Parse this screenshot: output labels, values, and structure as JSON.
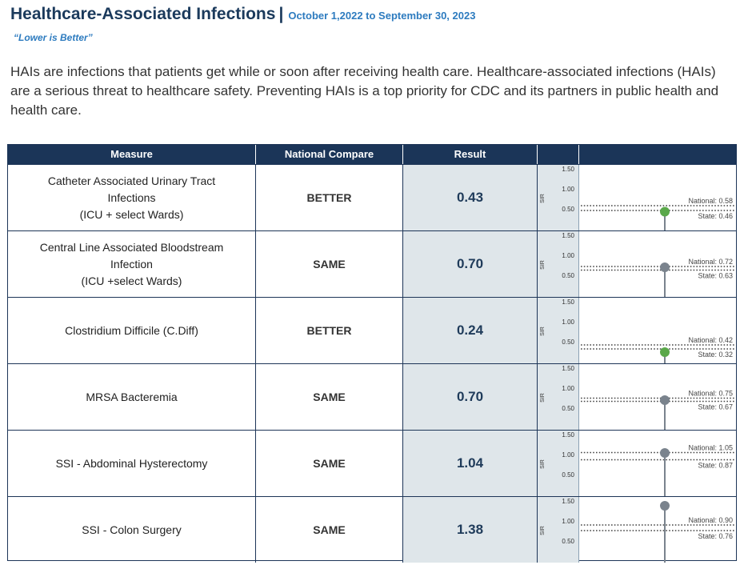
{
  "header": {
    "title": "Healthcare-Associated Infections",
    "separator": "|",
    "period": "October 1,2022 to September 30, 2023",
    "subtitle": "“Lower is Better”"
  },
  "intro": "HAIs are infections that patients get while or soon after receiving health care.  Healthcare-associated infections (HAIs) are a serious threat to healthcare safety.  Preventing HAIs is a top priority for CDC and its partners in public health and health care.",
  "table": {
    "columns": [
      "Measure",
      "National Compare",
      "Result",
      "",
      ""
    ],
    "axis_label": "SIR",
    "ticks": [
      "1.50",
      "1.00",
      "0.50"
    ],
    "rows": [
      {
        "measure": [
          "Catheter Associated Urinary Tract",
          "Infections",
          "(ICU + select Wards)"
        ],
        "compare": "BETTER",
        "result": "0.43",
        "national_label": "National: 0.58",
        "state_label": "State: 0.46"
      },
      {
        "measure": [
          "Central Line Associated Bloodstream",
          "Infection",
          "(ICU +select Wards)"
        ],
        "compare": "SAME",
        "result": "0.70",
        "national_label": "National: 0.72",
        "state_label": "State: 0.63"
      },
      {
        "measure": [
          "Clostridium Difficile (C.Diff)"
        ],
        "compare": "BETTER",
        "result": "0.24",
        "national_label": "National: 0.42",
        "state_label": "State: 0.32"
      },
      {
        "measure": [
          "MRSA Bacteremia"
        ],
        "compare": "SAME",
        "result": "0.70",
        "national_label": "National: 0.75",
        "state_label": "State: 0.67"
      },
      {
        "measure": [
          "SSI - Abdominal Hysterectomy"
        ],
        "compare": "SAME",
        "result": "1.04",
        "national_label": "National: 1.05",
        "state_label": "State: 0.87"
      },
      {
        "measure": [
          "SSI - Colon Surgery"
        ],
        "compare": "SAME",
        "result": "1.38",
        "national_label": "National: 0.90",
        "state_label": "State: 0.76"
      }
    ]
  },
  "chart_data": {
    "type": "scatter",
    "ylabel": "SIR",
    "ylim": [
      0,
      1.5
    ],
    "yticks": [
      1.5,
      1.0,
      0.5
    ],
    "grid": false,
    "series": [
      {
        "categories": [
          "Catheter Associated Urinary Tract Infections (ICU + select Wards)",
          "Central Line Associated Bloodstream Infection (ICU +select Wards)",
          "Clostridium Difficile (C.Diff)",
          "MRSA Bacteremia",
          "SSI - Abdominal Hysterectomy",
          "SSI - Colon Surgery"
        ],
        "values": [
          0.43,
          0.7,
          0.24,
          0.7,
          1.04,
          1.38
        ],
        "national": [
          0.58,
          0.72,
          0.42,
          0.75,
          1.05,
          0.9
        ],
        "state": [
          0.46,
          0.63,
          0.32,
          0.67,
          0.87,
          0.76
        ],
        "compare": [
          "BETTER",
          "SAME",
          "BETTER",
          "SAME",
          "SAME",
          "SAME"
        ]
      }
    ]
  },
  "colors": {
    "header_bg": "#1b3558",
    "title": "#1b3a5c",
    "accent": "#2d7bbf",
    "better": "#5aa84a",
    "same": "#7a838d",
    "result_bg": "#dfe6ea"
  }
}
